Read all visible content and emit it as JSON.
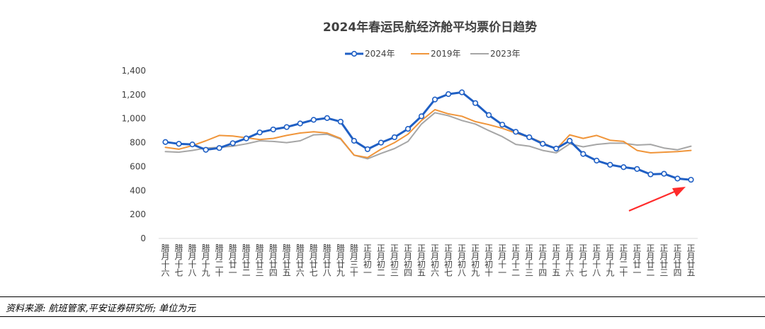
{
  "chart_data": {
    "type": "line",
    "title": "2024年春运民航经济舱平均票价日趋势",
    "ylim": [
      0,
      1400
    ],
    "yticks": [
      0,
      200,
      400,
      600,
      800,
      1000,
      1200,
      1400
    ],
    "ytick_labels": [
      "0",
      "200",
      "400",
      "600",
      "800",
      "1,000",
      "1,200",
      "1,400"
    ],
    "legend_position": "top-center",
    "grid": false,
    "categories": [
      "腊月十六",
      "腊月十七",
      "腊月十八",
      "腊月十九",
      "腊月二十",
      "腊月廿一",
      "腊月廿二",
      "腊月廿三",
      "腊月廿四",
      "腊月廿五",
      "腊月廿六",
      "腊月廿七",
      "腊月廿八",
      "腊月廿九",
      "腊月三十",
      "正月初一",
      "正月初二",
      "正月初三",
      "正月初四",
      "正月初五",
      "正月初六",
      "正月初七",
      "正月初八",
      "正月初九",
      "正月初十",
      "正月十一",
      "正月十二",
      "正月十三",
      "正月十四",
      "正月十五",
      "正月十六",
      "正月十七",
      "正月十八",
      "正月十九",
      "正月二十",
      "正月廿一",
      "正月廿二",
      "正月廿三",
      "正月廿四",
      "正月廿五"
    ],
    "series": [
      {
        "name": "2024年",
        "color": "#1f5fc4",
        "markers": true,
        "values": [
          805,
          790,
          785,
          740,
          755,
          795,
          835,
          885,
          910,
          930,
          960,
          990,
          1005,
          975,
          815,
          745,
          800,
          845,
          915,
          1020,
          1160,
          1205,
          1220,
          1130,
          1030,
          950,
          890,
          845,
          790,
          750,
          815,
          705,
          650,
          615,
          595,
          580,
          535,
          540,
          500,
          490
        ]
      },
      {
        "name": "2019年",
        "color": "#f0953a",
        "markers": false,
        "values": [
          760,
          745,
          775,
          815,
          860,
          855,
          840,
          825,
          835,
          860,
          880,
          890,
          880,
          835,
          695,
          675,
          745,
          800,
          870,
          985,
          1075,
          1040,
          1020,
          975,
          950,
          920,
          880,
          845,
          800,
          745,
          865,
          835,
          860,
          820,
          810,
          735,
          715,
          720,
          725,
          735
        ]
      },
      {
        "name": "2023年",
        "color": "#a6a6a6",
        "markers": false,
        "values": [
          725,
          720,
          735,
          755,
          760,
          770,
          790,
          815,
          810,
          800,
          815,
          865,
          870,
          830,
          695,
          665,
          710,
          750,
          810,
          955,
          1050,
          1025,
          985,
          955,
          900,
          850,
          785,
          770,
          735,
          715,
          790,
          765,
          785,
          795,
          795,
          780,
          785,
          755,
          740,
          770
        ]
      }
    ]
  },
  "footer": {
    "source": "资料来源: 航班管家,平安证券研究所;  单位为元"
  },
  "annotation": {
    "arrow_color": "#ff2b2b"
  }
}
